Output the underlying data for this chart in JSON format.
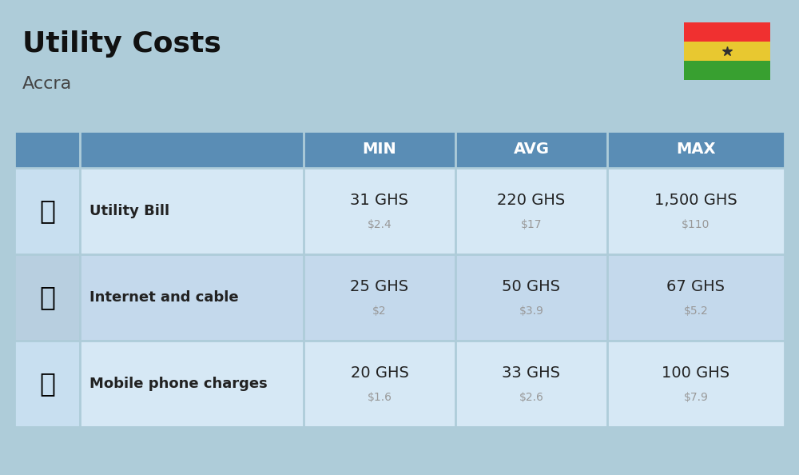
{
  "title": "Utility Costs",
  "subtitle": "Accra",
  "background_color": "#aeccd9",
  "header_bg_color": "#5a8db5",
  "header_text_color": "#ffffff",
  "row_color_1": "#d6e8f5",
  "row_color_2": "#c4d9ec",
  "icon_col_color_1": "#c8dff0",
  "icon_col_color_2": "#b8cfe0",
  "cell_text_color": "#222222",
  "usd_text_color": "#999999",
  "divider_color": "#aeccd9",
  "title_fontsize": 26,
  "subtitle_fontsize": 16,
  "header_fontsize": 14,
  "label_fontsize": 13,
  "value_fontsize": 14,
  "usd_fontsize": 10,
  "flag_colors": [
    "#f03030",
    "#e8c830",
    "#38a030"
  ],
  "flag_star_color": "#303030",
  "rows": [
    {
      "label": "Utility Bill",
      "min_ghs": "31 GHS",
      "min_usd": "$2.4",
      "avg_ghs": "220 GHS",
      "avg_usd": "$17",
      "max_ghs": "1,500 GHS",
      "max_usd": "$110"
    },
    {
      "label": "Internet and cable",
      "min_ghs": "25 GHS",
      "min_usd": "$2",
      "avg_ghs": "50 GHS",
      "avg_usd": "$3.9",
      "max_ghs": "67 GHS",
      "max_usd": "$5.2"
    },
    {
      "label": "Mobile phone charges",
      "min_ghs": "20 GHS",
      "min_usd": "$1.6",
      "avg_ghs": "33 GHS",
      "avg_usd": "$2.6",
      "max_ghs": "100 GHS",
      "max_usd": "$7.9"
    }
  ]
}
